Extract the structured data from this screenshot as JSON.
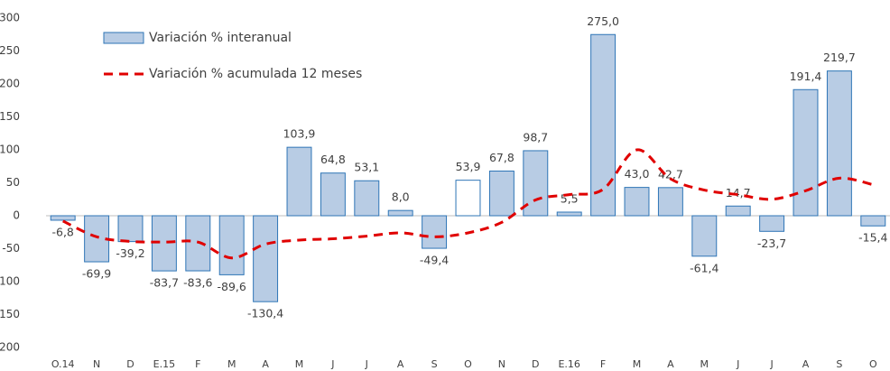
{
  "chart_data": {
    "type": "bar-line",
    "categories": [
      "O.14",
      "N",
      "D",
      "E.15",
      "F",
      "M",
      "A",
      "M",
      "J",
      "J",
      "A",
      "S",
      "O",
      "N",
      "D",
      "E.16",
      "F",
      "M",
      "A",
      "M",
      "J",
      "J",
      "A",
      "S",
      "O"
    ],
    "series": [
      {
        "name": "Variación % interanual",
        "type": "bar",
        "color": "#b8cce4",
        "edge": "#2e75b6",
        "colors": [
          "#b8cce4",
          "#b8cce4",
          "#b8cce4",
          "#b8cce4",
          "#b8cce4",
          "#b8cce4",
          "#b8cce4",
          "#b8cce4",
          "#b8cce4",
          "#b8cce4",
          "#b8cce4",
          "#b8cce4",
          "#ffffff",
          "#b8cce4",
          "#b8cce4",
          "#b8cce4",
          "#b8cce4",
          "#b8cce4",
          "#b8cce4",
          "#b8cce4",
          "#b8cce4",
          "#b8cce4",
          "#b8cce4",
          "#b8cce4",
          "#b8cce4"
        ],
        "values": [
          -6.8,
          -69.9,
          -39.2,
          -83.7,
          -83.6,
          -89.6,
          -130.4,
          103.9,
          64.8,
          53.1,
          8.0,
          -49.4,
          53.9,
          67.8,
          98.7,
          5.5,
          275.0,
          43.0,
          42.7,
          -61.4,
          14.7,
          -23.7,
          191.4,
          219.7,
          -15.4
        ],
        "value_labels": [
          "-6,8",
          "-69,9",
          "-39,2",
          "-83,7",
          "-83,6",
          "-89,6",
          "-130,4",
          "103,9",
          "64,8",
          "53,1",
          "8,0",
          "-49,4",
          "53,9",
          "67,8",
          "98,7",
          "5,5",
          "275,0",
          "43,0",
          "42,7",
          "-61,4",
          "14,7",
          "-23,7",
          "191,4",
          "219,7",
          "-15,4"
        ]
      },
      {
        "name": "Variación % acumulada 12 meses",
        "type": "line",
        "color": "#e00000",
        "dash": true,
        "values": [
          -8,
          -32,
          -39,
          -40,
          -40,
          -64,
          -43,
          -37,
          -35,
          -31,
          -26,
          -32,
          -26,
          -10,
          24,
          32,
          40,
          100,
          56,
          39,
          32,
          25,
          38,
          57,
          47
        ]
      }
    ],
    "ylim": [
      -200,
      300
    ],
    "yticks": [
      -200,
      -150,
      -100,
      -50,
      0,
      50,
      100,
      150,
      200,
      250,
      300
    ],
    "grid": false,
    "legend": "upper left"
  }
}
